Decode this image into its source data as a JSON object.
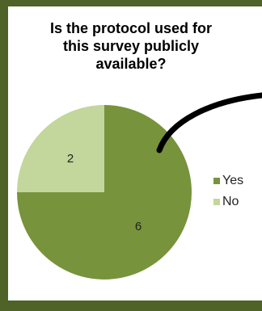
{
  "colors": {
    "border": "#4f6228",
    "yes": "#77933c",
    "no": "#c3d69b"
  },
  "chart_data": {
    "type": "pie",
    "title_lines": [
      "Is the protocol used for",
      "this survey publicly",
      "available?"
    ],
    "series": [
      {
        "name": "Yes",
        "value": 6
      },
      {
        "name": "No",
        "value": 2
      }
    ],
    "legend": "right"
  }
}
